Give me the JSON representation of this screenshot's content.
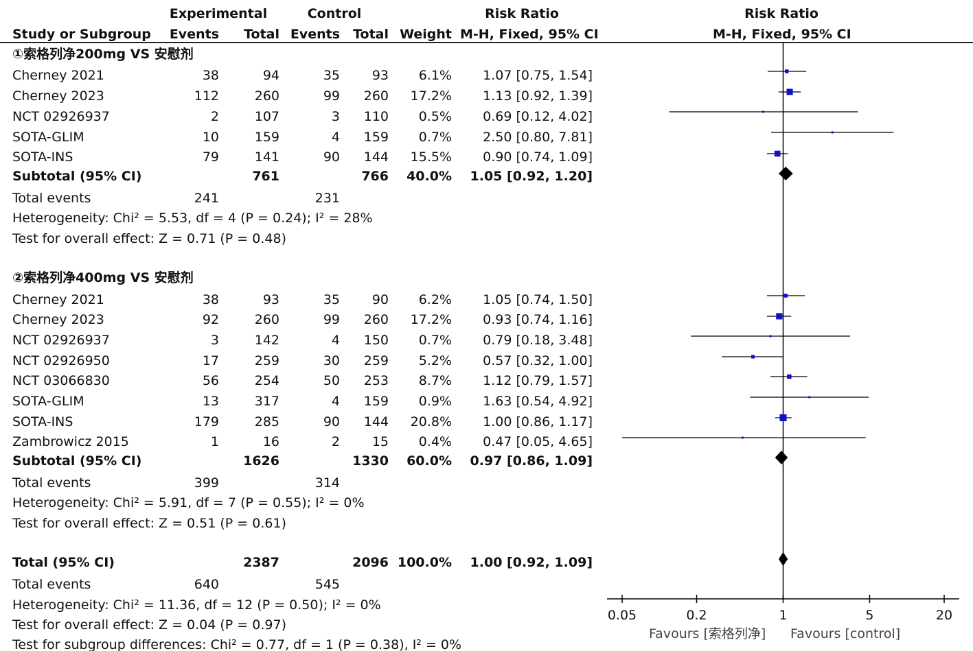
{
  "headers": {
    "study": "Study or Subgroup",
    "experimental": "Experimental",
    "control": "Control",
    "events": "Events",
    "total": "Total",
    "weight": "Weight",
    "risk_ratio": "Risk Ratio",
    "method": "M-H, Fixed, 95% CI"
  },
  "groups": [
    {
      "title": "①索格列净200mg VS 安慰剂",
      "studies": [
        {
          "name": "Cherney 2021",
          "e_events": "38",
          "e_total": "94",
          "c_events": "35",
          "c_total": "93",
          "weight": "6.1%",
          "rr_text": "1.07 [0.75, 1.54]"
        },
        {
          "name": "Cherney 2023",
          "e_events": "112",
          "e_total": "260",
          "c_events": "99",
          "c_total": "260",
          "weight": "17.2%",
          "rr_text": "1.13 [0.92, 1.39]"
        },
        {
          "name": "NCT 02926937",
          "e_events": "2",
          "e_total": "107",
          "c_events": "3",
          "c_total": "110",
          "weight": "0.5%",
          "rr_text": "0.69 [0.12, 4.02]"
        },
        {
          "name": "SOTA-GLIM",
          "e_events": "10",
          "e_total": "159",
          "c_events": "4",
          "c_total": "159",
          "weight": "0.7%",
          "rr_text": "2.50 [0.80, 7.81]"
        },
        {
          "name": "SOTA-INS",
          "e_events": "79",
          "e_total": "141",
          "c_events": "90",
          "c_total": "144",
          "weight": "15.5%",
          "rr_text": "0.90 [0.74, 1.09]"
        }
      ],
      "subtotal": {
        "label": "Subtotal (95% CI)",
        "e_total": "761",
        "c_total": "766",
        "weight": "40.0%",
        "rr_text": "1.05 [0.92, 1.20]"
      },
      "total_events": {
        "label": "Total events",
        "e": "241",
        "c": "231"
      },
      "heterogeneity": "Heterogeneity: Chi² = 5.53, df = 4 (P = 0.24); I² = 28%",
      "overall": "Test for overall effect: Z = 0.71 (P = 0.48)"
    },
    {
      "title": "②索格列净400mg VS 安慰剂",
      "studies": [
        {
          "name": "Cherney 2021",
          "e_events": "38",
          "e_total": "93",
          "c_events": "35",
          "c_total": "90",
          "weight": "6.2%",
          "rr_text": "1.05 [0.74, 1.50]"
        },
        {
          "name": "Cherney 2023",
          "e_events": "92",
          "e_total": "260",
          "c_events": "99",
          "c_total": "260",
          "weight": "17.2%",
          "rr_text": "0.93 [0.74, 1.16]"
        },
        {
          "name": "NCT 02926937",
          "e_events": "3",
          "e_total": "142",
          "c_events": "4",
          "c_total": "150",
          "weight": "0.7%",
          "rr_text": "0.79 [0.18, 3.48]"
        },
        {
          "name": "NCT 02926950",
          "e_events": "17",
          "e_total": "259",
          "c_events": "30",
          "c_total": "259",
          "weight": "5.2%",
          "rr_text": "0.57 [0.32, 1.00]"
        },
        {
          "name": "NCT 03066830",
          "e_events": "56",
          "e_total": "254",
          "c_events": "50",
          "c_total": "253",
          "weight": "8.7%",
          "rr_text": "1.12 [0.79, 1.57]"
        },
        {
          "name": "SOTA-GLIM",
          "e_events": "13",
          "e_total": "317",
          "c_events": "4",
          "c_total": "159",
          "weight": "0.9%",
          "rr_text": "1.63 [0.54, 4.92]"
        },
        {
          "name": "SOTA-INS",
          "e_events": "179",
          "e_total": "285",
          "c_events": "90",
          "c_total": "144",
          "weight": "20.8%",
          "rr_text": "1.00 [0.86, 1.17]"
        },
        {
          "name": "Zambrowicz 2015",
          "e_events": "1",
          "e_total": "16",
          "c_events": "2",
          "c_total": "15",
          "weight": "0.4%",
          "rr_text": "0.47 [0.05, 4.65]"
        }
      ],
      "subtotal": {
        "label": "Subtotal (95% CI)",
        "e_total": "1626",
        "c_total": "1330",
        "weight": "60.0%",
        "rr_text": "0.97 [0.86, 1.09]"
      },
      "total_events": {
        "label": "Total events",
        "e": "399",
        "c": "314"
      },
      "heterogeneity": "Heterogeneity: Chi² = 5.91, df = 7 (P = 0.55); I² = 0%",
      "overall": "Test for overall effect: Z = 0.51 (P = 0.61)"
    }
  ],
  "total": {
    "label": "Total (95% CI)",
    "e_total": "2387",
    "c_total": "2096",
    "weight": "100.0%",
    "rr_text": "1.00 [0.92, 1.09]"
  },
  "total_events": {
    "label": "Total events",
    "e": "640",
    "c": "545"
  },
  "heterogeneity": "Heterogeneity: Chi² = 11.36, df = 12 (P = 0.50); I² = 0%",
  "overall": "Test for overall effect: Z = 0.04 (P = 0.97)",
  "subgroup_diff": "Test for subgroup differences: Chi² = 0.77, df = 1 (P = 0.38), I² = 0%",
  "axis": {
    "favours_left": "Favours [索格列净]",
    "favours_right": "Favours [control]"
  },
  "colors": {
    "marker": "#1010c8",
    "diamond": "#000000",
    "line": "#000000"
  },
  "chart_data": {
    "type": "forest",
    "scale": "log",
    "xlim": [
      0.05,
      20
    ],
    "ticks": [
      0.05,
      0.2,
      1,
      5,
      20
    ],
    "tick_labels": [
      "0.05",
      "0.2",
      "1",
      "5",
      "20"
    ],
    "reference": 1,
    "rows": [
      {
        "kind": "study",
        "rr": 1.07,
        "lo": 0.75,
        "hi": 1.54,
        "weight": 6.1
      },
      {
        "kind": "study",
        "rr": 1.13,
        "lo": 0.92,
        "hi": 1.39,
        "weight": 17.2
      },
      {
        "kind": "study",
        "rr": 0.69,
        "lo": 0.12,
        "hi": 4.02,
        "weight": 0.5
      },
      {
        "kind": "study",
        "rr": 2.5,
        "lo": 0.8,
        "hi": 7.81,
        "weight": 0.7
      },
      {
        "kind": "study",
        "rr": 0.9,
        "lo": 0.74,
        "hi": 1.09,
        "weight": 15.5
      },
      {
        "kind": "diamond",
        "rr": 1.05,
        "lo": 0.92,
        "hi": 1.2
      },
      {
        "kind": "study",
        "rr": 1.05,
        "lo": 0.74,
        "hi": 1.5,
        "weight": 6.2
      },
      {
        "kind": "study",
        "rr": 0.93,
        "lo": 0.74,
        "hi": 1.16,
        "weight": 17.2
      },
      {
        "kind": "study",
        "rr": 0.79,
        "lo": 0.18,
        "hi": 3.48,
        "weight": 0.7
      },
      {
        "kind": "study",
        "rr": 0.57,
        "lo": 0.32,
        "hi": 1.0,
        "weight": 5.2
      },
      {
        "kind": "study",
        "rr": 1.12,
        "lo": 0.79,
        "hi": 1.57,
        "weight": 8.7
      },
      {
        "kind": "study",
        "rr": 1.63,
        "lo": 0.54,
        "hi": 4.92,
        "weight": 0.9
      },
      {
        "kind": "study",
        "rr": 1.0,
        "lo": 0.86,
        "hi": 1.17,
        "weight": 20.8
      },
      {
        "kind": "study",
        "rr": 0.47,
        "lo": 0.05,
        "hi": 4.65,
        "weight": 0.4
      },
      {
        "kind": "diamond",
        "rr": 0.97,
        "lo": 0.86,
        "hi": 1.09
      },
      {
        "kind": "diamond",
        "rr": 1.0,
        "lo": 0.92,
        "hi": 1.09
      }
    ]
  }
}
